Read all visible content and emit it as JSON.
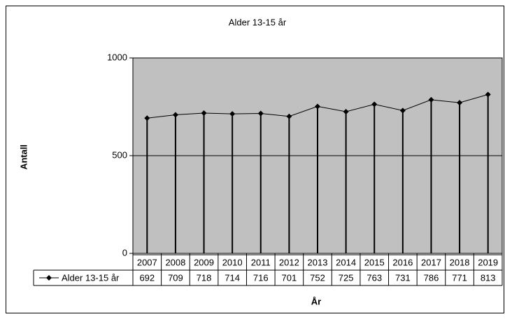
{
  "chart_data": {
    "type": "line",
    "title": "Alder 13-15 år",
    "xlabel": "År",
    "ylabel": "Antall",
    "categories": [
      "2007",
      "2008",
      "2009",
      "2010",
      "2011",
      "2012",
      "2013",
      "2014",
      "2015",
      "2016",
      "2017",
      "2018",
      "2019"
    ],
    "series": [
      {
        "name": "Alder 13-15 år",
        "color": "#000000",
        "values": [
          692,
          709,
          718,
          714,
          716,
          701,
          752,
          725,
          763,
          731,
          786,
          771,
          813
        ]
      }
    ],
    "ylim": [
      0,
      1000
    ],
    "yticks": [
      0,
      500,
      1000
    ],
    "grid": true,
    "plot_background": "#c0c0c0"
  }
}
